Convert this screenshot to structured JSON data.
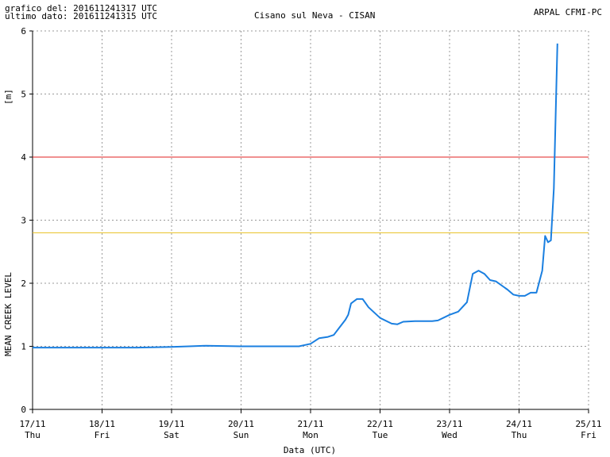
{
  "header": {
    "generated_label": "grafico del: 201611241317 UTC",
    "last_data_label": "ultimo dato: 201611241315 UTC",
    "station_title": "Cisano sul Neva - CISAN",
    "organization": "ARPAL CFMI-PC"
  },
  "chart_data": {
    "type": "line",
    "title": "Cisano sul Neva - CISAN",
    "xlabel": "Data (UTC)",
    "ylabel": "MEAN CREEK LEVEL",
    "yunit": "[m]",
    "ylim": [
      0,
      6
    ],
    "yticks": [
      0,
      1,
      2,
      3,
      4,
      5,
      6
    ],
    "xlim": [
      "17/11 00:00",
      "25/11 00:00"
    ],
    "xticks": [
      {
        "date": "17/11",
        "day": "Thu"
      },
      {
        "date": "18/11",
        "day": "Fri"
      },
      {
        "date": "19/11",
        "day": "Sat"
      },
      {
        "date": "20/11",
        "day": "Sun"
      },
      {
        "date": "21/11",
        "day": "Mon"
      },
      {
        "date": "22/11",
        "day": "Tue"
      },
      {
        "date": "23/11",
        "day": "Wed"
      },
      {
        "date": "24/11",
        "day": "Thu"
      },
      {
        "date": "25/11",
        "day": "Fri"
      }
    ],
    "grid": true,
    "thresholds": [
      {
        "value": 4.0,
        "color": "#e02020"
      },
      {
        "value": 2.8,
        "color": "#e8c020"
      }
    ],
    "series": [
      {
        "color": "#1a7fe0",
        "points": [
          [
            "17/11 00:00",
            0.98
          ],
          [
            "17/11 12:00",
            0.98
          ],
          [
            "18/11 00:00",
            0.98
          ],
          [
            "18/11 12:00",
            0.98
          ],
          [
            "19/11 00:00",
            0.99
          ],
          [
            "19/11 06:00",
            1.0
          ],
          [
            "19/11 12:00",
            1.01
          ],
          [
            "20/11 00:00",
            1.0
          ],
          [
            "20/11 12:00",
            1.0
          ],
          [
            "20/11 20:00",
            1.0
          ],
          [
            "21/11 00:00",
            1.04
          ],
          [
            "21/11 03:00",
            1.13
          ],
          [
            "21/11 06:00",
            1.15
          ],
          [
            "21/11 08:00",
            1.18
          ],
          [
            "21/11 10:00",
            1.3
          ],
          [
            "21/11 12:00",
            1.42
          ],
          [
            "21/11 13:00",
            1.5
          ],
          [
            "21/11 14:00",
            1.68
          ],
          [
            "21/11 16:00",
            1.75
          ],
          [
            "21/11 18:00",
            1.75
          ],
          [
            "21/11 20:00",
            1.62
          ],
          [
            "22/11 00:00",
            1.45
          ],
          [
            "22/11 04:00",
            1.36
          ],
          [
            "22/11 06:00",
            1.35
          ],
          [
            "22/11 08:00",
            1.39
          ],
          [
            "22/11 12:00",
            1.4
          ],
          [
            "22/11 18:00",
            1.4
          ],
          [
            "22/11 20:00",
            1.41
          ],
          [
            "23/11 00:00",
            1.5
          ],
          [
            "23/11 03:00",
            1.55
          ],
          [
            "23/11 06:00",
            1.7
          ],
          [
            "23/11 08:00",
            2.15
          ],
          [
            "23/11 10:00",
            2.2
          ],
          [
            "23/11 12:00",
            2.15
          ],
          [
            "23/11 14:00",
            2.05
          ],
          [
            "23/11 16:00",
            2.03
          ],
          [
            "23/11 20:00",
            1.9
          ],
          [
            "23/11 22:00",
            1.82
          ],
          [
            "24/11 00:00",
            1.8
          ],
          [
            "24/11 02:00",
            1.8
          ],
          [
            "24/11 04:00",
            1.85
          ],
          [
            "24/11 06:00",
            1.85
          ],
          [
            "24/11 08:00",
            2.2
          ],
          [
            "24/11 09:00",
            2.75
          ],
          [
            "24/11 10:00",
            2.65
          ],
          [
            "24/11 11:00",
            2.68
          ],
          [
            "24/11 12:00",
            3.5
          ],
          [
            "24/11 13:15",
            5.8
          ]
        ]
      }
    ]
  }
}
